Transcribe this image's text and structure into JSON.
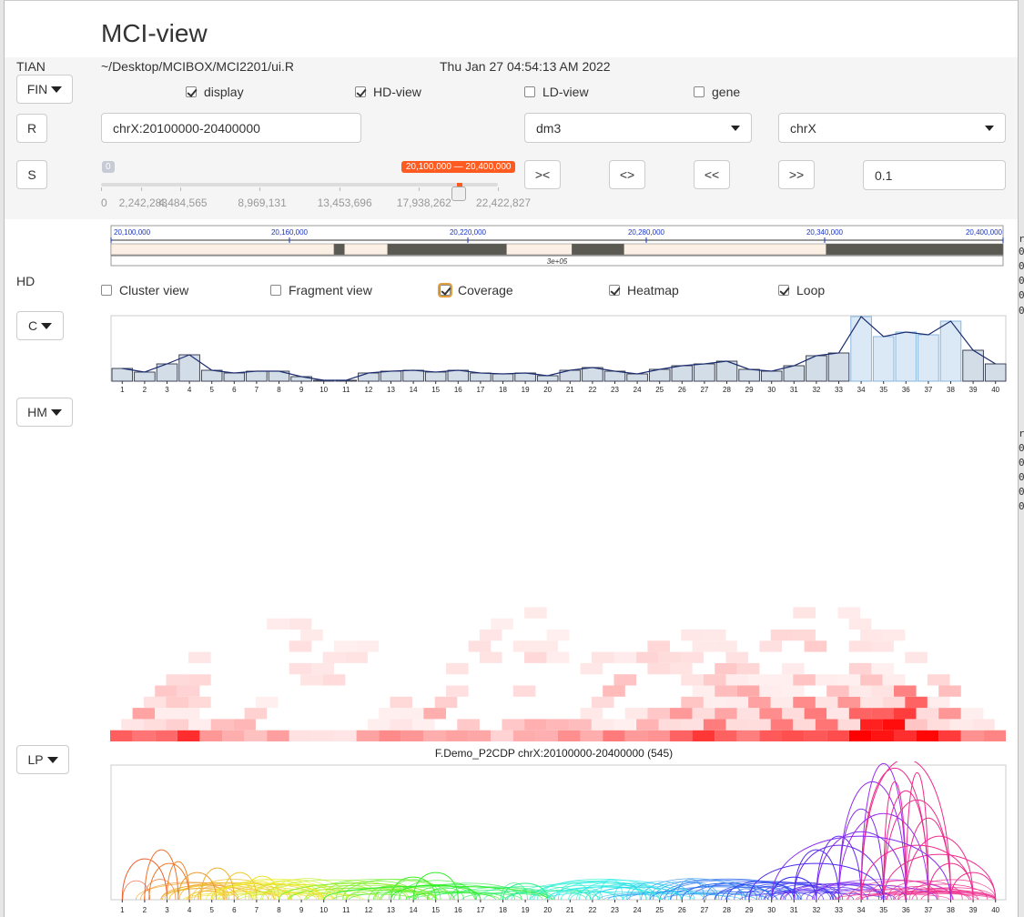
{
  "app": {
    "title": "MCI-view",
    "user": "TIAN",
    "path": "~/Desktop/MCIBOX/MCI2201/ui.R",
    "timestamp": "Thu Jan 27 04:54:13 AM 2022"
  },
  "controls": {
    "fin_menu": "FIN",
    "r_button": "R",
    "s_button": "S",
    "hd_label": "HD",
    "c_menu": "C",
    "hm_menu": "HM",
    "lp_menu": "LP",
    "display": {
      "label": "display",
      "checked": true
    },
    "hd_view": {
      "label": "HD-view",
      "checked": true
    },
    "ld_view": {
      "label": "LD-view",
      "checked": false
    },
    "gene": {
      "label": "gene",
      "checked": false
    },
    "region_input": "chrX:20100000-20400000",
    "genome_select": "dm3",
    "chrom_select": "chrX",
    "btn_shrink": "><",
    "btn_expand": "<>",
    "btn_left": "<<",
    "btn_right": ">>",
    "step_input": "0.1",
    "slider": {
      "min_badge": "0",
      "range_label": "20,100,000 — 20,400,000",
      "ticks": [
        "0",
        "2,242,283",
        "4,484,565",
        "8,969,131",
        "13,453,696",
        "17,938,262",
        "22,422,827"
      ],
      "max": 22422827,
      "value_from": 20100000,
      "value_to": 20400000
    }
  },
  "views": {
    "cluster_view": {
      "label": "Cluster view",
      "checked": false
    },
    "fragment_view": {
      "label": "Fragment view",
      "checked": false
    },
    "coverage": {
      "label": "Coverage",
      "checked": true
    },
    "heatmap": {
      "label": "Heatmap",
      "checked": true
    },
    "loop": {
      "label": "Loop",
      "checked": true
    }
  },
  "track": {
    "ticks": [
      "20,100,000",
      "20,160,000",
      "20,220,000",
      "20,280,000",
      "20,340,000",
      "20,400,000"
    ],
    "center_label": "3e+05",
    "range": [
      20100000,
      20400000
    ],
    "segments": [
      [
        20100000,
        20175000,
        "light"
      ],
      [
        20175000,
        20178500,
        "dark"
      ],
      [
        20178500,
        20193000,
        "light"
      ],
      [
        20193000,
        20233000,
        "dark"
      ],
      [
        20233000,
        20255000,
        "light"
      ],
      [
        20255000,
        20272500,
        "dark"
      ],
      [
        20272500,
        20340500,
        "light"
      ],
      [
        20340500,
        20400000,
        "dark"
      ]
    ]
  },
  "loop_title": "F.Demo_P2CDP chrX:20100000-20400000 (545)",
  "right_edge": [
    "r",
    "0",
    "0",
    "0",
    "0",
    "0",
    "r",
    "0",
    "0",
    "0",
    "0",
    "0"
  ],
  "chart_data": [
    {
      "type": "bar",
      "name": "coverage",
      "categories": [
        "1",
        "2",
        "3",
        "4",
        "5",
        "6",
        "7",
        "8",
        "9",
        "10",
        "11",
        "12",
        "13",
        "14",
        "15",
        "16",
        "17",
        "18",
        "19",
        "20",
        "21",
        "22",
        "23",
        "24",
        "25",
        "26",
        "27",
        "28",
        "29",
        "30",
        "31",
        "32",
        "33",
        "34",
        "35",
        "36",
        "37",
        "38",
        "39",
        "40"
      ],
      "values": [
        14,
        10,
        19,
        29,
        12,
        9,
        11,
        11,
        5,
        1,
        1,
        9,
        11,
        12,
        10,
        12,
        9,
        8,
        9,
        6,
        12,
        15,
        11,
        8,
        13,
        17,
        19,
        22,
        13,
        11,
        17,
        28,
        31,
        71,
        49,
        54,
        51,
        66,
        34,
        19
      ],
      "ylim": [
        0,
        72
      ],
      "highlight": [
        34,
        35,
        36,
        37,
        38
      ],
      "line": true
    },
    {
      "type": "heatmap",
      "name": "hic_heatmap",
      "n": 40,
      "rows": 25,
      "base": [
        6,
        5,
        7,
        9,
        4,
        3,
        3,
        3,
        1,
        0,
        0,
        3,
        4,
        5,
        3,
        4,
        3,
        2,
        3,
        3,
        5,
        4,
        4,
        3,
        5,
        6,
        6,
        7,
        5,
        6,
        6,
        7,
        8,
        9,
        9,
        9,
        9,
        8,
        5,
        4
      ]
    },
    {
      "type": "arcs",
      "name": "loops",
      "n": 40,
      "arcs": [
        [
          1,
          3,
          45
        ],
        [
          2,
          3.5,
          55
        ],
        [
          2.2,
          4,
          40
        ],
        [
          3,
          4,
          42
        ],
        [
          3.5,
          5.2,
          30
        ],
        [
          4.5,
          6,
          35
        ],
        [
          5.5,
          7,
          30
        ],
        [
          6.5,
          8,
          26
        ],
        [
          5,
          10,
          18
        ],
        [
          8,
          15,
          18
        ],
        [
          10,
          20,
          15
        ],
        [
          13,
          15,
          25
        ],
        [
          14,
          16,
          30
        ],
        [
          13,
          17,
          16
        ],
        [
          18,
          20,
          18
        ],
        [
          20,
          25,
          14
        ],
        [
          22,
          26,
          14
        ],
        [
          26,
          30,
          18
        ],
        [
          28,
          31,
          20
        ],
        [
          30,
          32,
          25
        ],
        [
          31,
          33,
          55
        ],
        [
          31,
          35,
          60
        ],
        [
          32,
          34,
          70
        ],
        [
          33,
          35,
          100
        ],
        [
          33,
          36,
          130
        ],
        [
          34,
          36,
          150
        ],
        [
          34,
          37,
          145
        ],
        [
          35,
          37,
          120
        ],
        [
          35,
          38,
          110
        ],
        [
          36,
          38,
          90
        ],
        [
          36,
          39,
          70
        ],
        [
          34,
          39,
          60
        ],
        [
          35,
          40,
          50
        ],
        [
          37,
          39,
          40
        ],
        [
          38,
          40,
          30
        ],
        [
          33,
          37,
          95
        ],
        [
          32,
          36,
          75
        ],
        [
          34,
          38,
          155
        ],
        [
          35,
          36,
          130
        ],
        [
          36,
          37,
          140
        ],
        [
          30,
          38,
          70
        ],
        [
          29,
          35,
          40
        ]
      ]
    }
  ]
}
